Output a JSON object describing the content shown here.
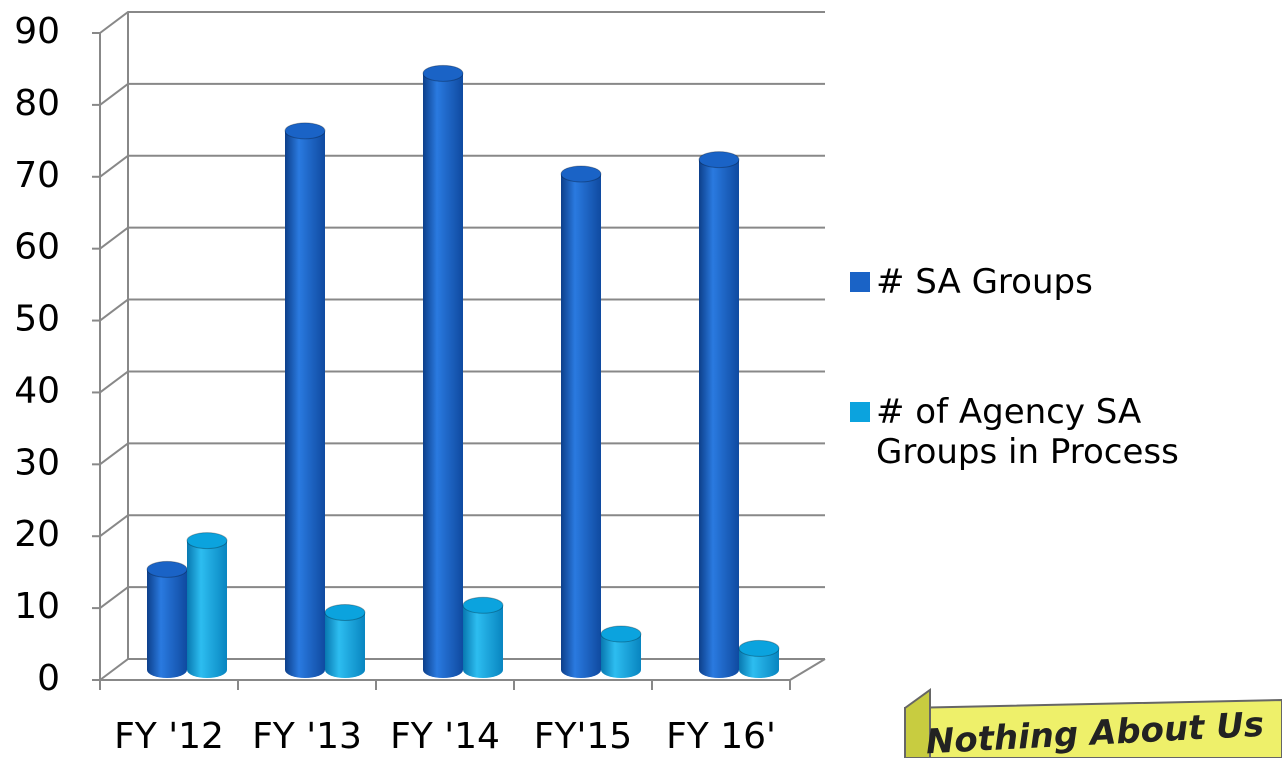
{
  "chart_data": {
    "type": "bar3d",
    "categories": [
      "FY '12",
      "FY '13",
      "FY '14",
      "FY'15",
      "FY 16'"
    ],
    "series": [
      {
        "name": "# SA Groups",
        "color": "#1a63c6",
        "values": [
          14,
          75,
          83,
          69,
          71
        ]
      },
      {
        "name": "# of Agency SA Groups in Process",
        "color": "#0ba3de",
        "values": [
          18,
          8,
          9,
          5,
          3
        ]
      }
    ],
    "ylim": [
      0,
      90
    ],
    "yticks": [
      0,
      10,
      20,
      30,
      40,
      50,
      60,
      70,
      80,
      90
    ],
    "grid": true,
    "legend": "right"
  },
  "banner": {
    "text": "Nothing About Us"
  }
}
